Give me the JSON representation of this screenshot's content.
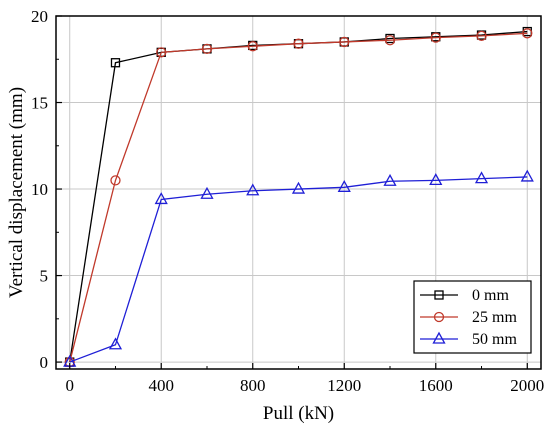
{
  "chart_data": {
    "type": "line",
    "xlabel": "Pull (kN)",
    "ylabel": "Vertical displacement (mm)",
    "xlim": [
      -60,
      2060
    ],
    "ylim": [
      -0.4,
      20
    ],
    "xticks": [
      0,
      400,
      800,
      1200,
      1600,
      2000
    ],
    "yticks": [
      0,
      5,
      10,
      15,
      20
    ],
    "grid": true,
    "legend_position": "bottom-right",
    "series": [
      {
        "name": "0 mm",
        "color": "#000000",
        "marker": "square",
        "x": [
          0,
          200,
          400,
          600,
          800,
          1000,
          1200,
          1400,
          1600,
          1800,
          2000
        ],
        "y": [
          0,
          17.3,
          17.9,
          18.1,
          18.3,
          18.4,
          18.5,
          18.7,
          18.8,
          18.9,
          19.1
        ]
      },
      {
        "name": "25 mm",
        "color": "#c0392b",
        "marker": "circle",
        "x": [
          0,
          200,
          400,
          600,
          800,
          1000,
          1200,
          1400,
          1600,
          1800,
          2000
        ],
        "y": [
          0,
          10.5,
          17.9,
          18.1,
          18.25,
          18.4,
          18.5,
          18.6,
          18.75,
          18.85,
          19.0
        ]
      },
      {
        "name": "50 mm",
        "color": "#1f1fd6",
        "marker": "triangle",
        "x": [
          0,
          200,
          400,
          600,
          800,
          1000,
          1200,
          1400,
          1600,
          1800,
          2000
        ],
        "y": [
          0,
          1.0,
          9.4,
          9.7,
          9.9,
          10.0,
          10.1,
          10.45,
          10.5,
          10.6,
          10.7
        ]
      }
    ]
  }
}
